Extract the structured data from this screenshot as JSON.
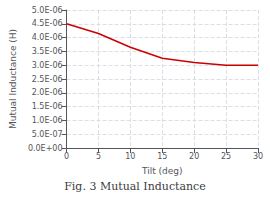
{
  "chart_data": {
    "type": "line",
    "title": "Fig. 3 Mutual Inductance",
    "xlabel": "Tilt (deg)",
    "ylabel": "Mutual Inductance (H)",
    "x": [
      0,
      5,
      10,
      15,
      20,
      25,
      30
    ],
    "values": [
      4.5e-06,
      4.15e-06,
      3.65e-06,
      3.25e-06,
      3.1e-06,
      3e-06,
      3e-06
    ],
    "color": "#cc0000",
    "xlim": [
      0,
      30
    ],
    "xticks": [
      0,
      5,
      10,
      15,
      20,
      25,
      30
    ],
    "ylim": [
      0,
      5e-06
    ],
    "yticks": [
      {
        "value": 0.0,
        "label": "0.0E+00"
      },
      {
        "value": 5e-07,
        "label": "5.0E-07"
      },
      {
        "value": 1e-06,
        "label": "1.0E-06"
      },
      {
        "value": 1.5e-06,
        "label": "1.5E-06"
      },
      {
        "value": 2e-06,
        "label": "2.0E-06"
      },
      {
        "value": 2.5e-06,
        "label": "2.5E-06"
      },
      {
        "value": 3e-06,
        "label": "3.0E-06"
      },
      {
        "value": 3.5e-06,
        "label": "3.5E-06"
      },
      {
        "value": 4e-06,
        "label": "4.0E-06"
      },
      {
        "value": 4.5e-06,
        "label": "4.5E-06"
      },
      {
        "value": 5e-06,
        "label": "5.0E-06"
      }
    ],
    "grid": true
  }
}
